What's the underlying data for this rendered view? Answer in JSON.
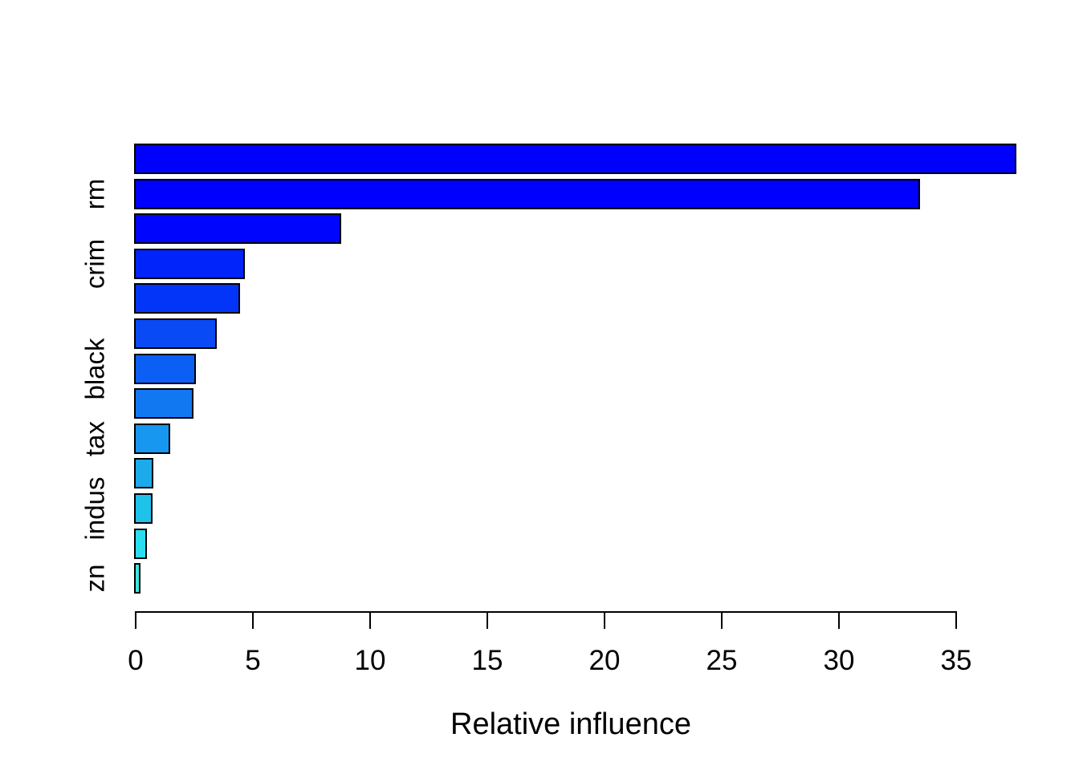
{
  "chart_data": {
    "type": "bar",
    "orientation": "horizontal",
    "title": "",
    "xlabel": "Relative influence",
    "ylabel": "",
    "xlim": [
      0,
      35
    ],
    "x_ticks": [
      0,
      5,
      10,
      15,
      20,
      25,
      30,
      35
    ],
    "grid": false,
    "legend": false,
    "bar_border_color": "#000000",
    "background_color": "#ffffff",
    "text_color": "#000000",
    "bars": [
      {
        "label": "",
        "value": 37.5,
        "color": "#0000ff"
      },
      {
        "label": "rm",
        "value": 33.4,
        "color": "#0000ff"
      },
      {
        "label": "",
        "value": 8.7,
        "color": "#0006fd"
      },
      {
        "label": "crim",
        "value": 4.6,
        "color": "#0124fa"
      },
      {
        "label": "",
        "value": 4.4,
        "color": "#0335f9"
      },
      {
        "label": "",
        "value": 3.4,
        "color": "#0a4af5"
      },
      {
        "label": "black",
        "value": 2.5,
        "color": "#0c5ff5"
      },
      {
        "label": "",
        "value": 2.4,
        "color": "#1278f2"
      },
      {
        "label": "tax",
        "value": 1.4,
        "color": "#1897f0"
      },
      {
        "label": "",
        "value": 0.7,
        "color": "#1caaea"
      },
      {
        "label": "indus",
        "value": 0.65,
        "color": "#1fc2e8"
      },
      {
        "label": "",
        "value": 0.4,
        "color": "#2addef"
      },
      {
        "label": "zn",
        "value": 0.14,
        "color": "#3de8df"
      }
    ]
  }
}
